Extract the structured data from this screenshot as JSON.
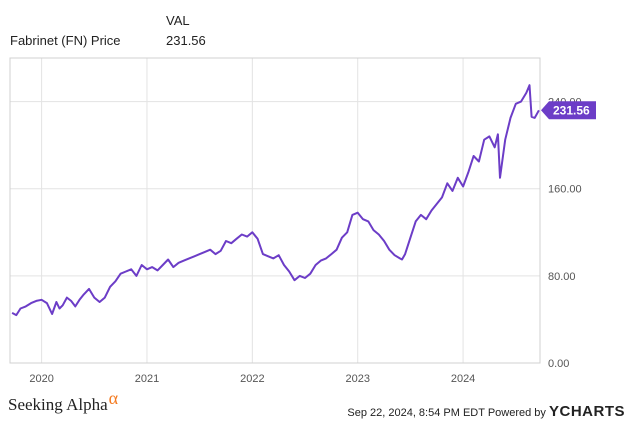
{
  "legend": {
    "header": "VAL",
    "series_name": "Fabrinet (FN) Price",
    "value": "231.56"
  },
  "colors": {
    "line": "#6c3dc7",
    "grid": "#e3e3e3",
    "axis_text": "#555555"
  },
  "footer": {
    "brand": "Seeking Alpha",
    "alpha_symbol": "α",
    "timestamp": "Sep 22, 2024, 8:54 PM EDT",
    "powered_by": "Powered by",
    "provider": "YCHARTS"
  },
  "chart_data": {
    "type": "line",
    "title": "",
    "xlabel": "",
    "ylabel": "",
    "ylim": [
      0,
      280
    ],
    "yticks": [
      "0.00",
      "80.00",
      "160.00",
      "240.00"
    ],
    "ytick_values": [
      0,
      80,
      160,
      240
    ],
    "xticks": [
      "2020",
      "2021",
      "2022",
      "2023",
      "2024"
    ],
    "xtick_values": [
      2020,
      2021,
      2022,
      2023,
      2024
    ],
    "xlim": [
      2019.7,
      2024.73
    ],
    "grid": true,
    "last_value_label": "231.56",
    "series": [
      {
        "name": "Fabrinet (FN) Price",
        "color": "#6c3dc7",
        "x": [
          2019.72,
          2019.76,
          2019.8,
          2019.85,
          2019.9,
          2019.95,
          2020.0,
          2020.05,
          2020.1,
          2020.14,
          2020.17,
          2020.2,
          2020.24,
          2020.28,
          2020.32,
          2020.36,
          2020.4,
          2020.45,
          2020.5,
          2020.55,
          2020.6,
          2020.65,
          2020.7,
          2020.75,
          2020.8,
          2020.85,
          2020.9,
          2020.95,
          2021.0,
          2021.05,
          2021.1,
          2021.15,
          2021.2,
          2021.25,
          2021.3,
          2021.35,
          2021.4,
          2021.45,
          2021.5,
          2021.55,
          2021.6,
          2021.65,
          2021.7,
          2021.75,
          2021.8,
          2021.85,
          2021.9,
          2021.95,
          2022.0,
          2022.05,
          2022.1,
          2022.15,
          2022.2,
          2022.25,
          2022.3,
          2022.35,
          2022.4,
          2022.45,
          2022.5,
          2022.55,
          2022.6,
          2022.65,
          2022.7,
          2022.75,
          2022.8,
          2022.85,
          2022.9,
          2022.95,
          2023.0,
          2023.05,
          2023.1,
          2023.15,
          2023.2,
          2023.25,
          2023.3,
          2023.35,
          2023.4,
          2023.42,
          2023.45,
          2023.5,
          2023.55,
          2023.6,
          2023.65,
          2023.7,
          2023.75,
          2023.8,
          2023.85,
          2023.9,
          2023.95,
          2024.0,
          2024.05,
          2024.1,
          2024.15,
          2024.2,
          2024.25,
          2024.3,
          2024.33,
          2024.35,
          2024.4,
          2024.45,
          2024.5,
          2024.55,
          2024.6,
          2024.63,
          2024.65,
          2024.68,
          2024.72
        ],
        "values": [
          46,
          44,
          50,
          52,
          55,
          57,
          58,
          55,
          45,
          56,
          50,
          53,
          60,
          57,
          52,
          58,
          63,
          68,
          60,
          56,
          60,
          70,
          75,
          82,
          84,
          86,
          80,
          90,
          86,
          88,
          85,
          90,
          95,
          88,
          92,
          94,
          96,
          98,
          100,
          102,
          104,
          100,
          103,
          112,
          110,
          114,
          118,
          116,
          120,
          114,
          100,
          98,
          96,
          99,
          90,
          84,
          76,
          80,
          78,
          82,
          90,
          94,
          96,
          100,
          104,
          115,
          120,
          136,
          138,
          132,
          130,
          122,
          118,
          112,
          104,
          99,
          96,
          95,
          100,
          115,
          130,
          136,
          132,
          140,
          146,
          152,
          165,
          158,
          170,
          162,
          175,
          190,
          185,
          205,
          208,
          198,
          210,
          170,
          205,
          225,
          238,
          240,
          248,
          255,
          226,
          225,
          232
        ]
      }
    ]
  }
}
